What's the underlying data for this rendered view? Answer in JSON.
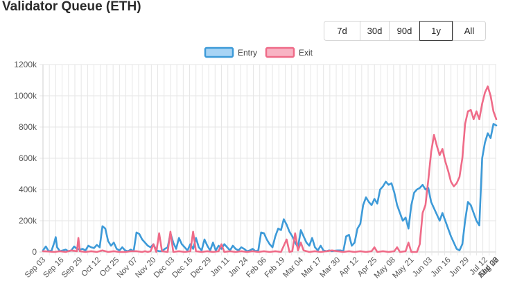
{
  "title": "Validator Queue (ETH)",
  "range_buttons": [
    {
      "label": "7d"
    },
    {
      "label": "30d"
    },
    {
      "label": "90d"
    },
    {
      "label": "1y",
      "active": true
    },
    {
      "label": "All"
    }
  ],
  "colors": {
    "entry": "#3d9ad8",
    "entry_fill": "#a8d4f5",
    "exit": "#ef6b88",
    "exit_fill": "#f8b4c4",
    "grid": "#e6e6e6"
  },
  "chart_data": {
    "type": "line",
    "ylim": [
      0,
      1200000
    ],
    "y_ticks": [
      "0",
      "200k",
      "400k",
      "600k",
      "800k",
      "1000k",
      "1200k"
    ],
    "x_ticks": [
      "Sep 03",
      "Sep 16",
      "Sep 29",
      "Oct 12",
      "Oct 25",
      "Nov 07",
      "Nov 20",
      "Dec 03",
      "Dec 16",
      "Dec 29",
      "Jan 11",
      "Jan 24",
      "Feb 06",
      "Feb 19",
      "Mar 04",
      "Mar 17",
      "Mar 30",
      "Apr 12",
      "Apr 25",
      "May 08",
      "May 21",
      "Jun 03",
      "Jun 16",
      "Jun 29",
      "Jul 12",
      "Jul 25",
      "Aug 07",
      "Aug 20",
      "Sep 02"
    ],
    "legend_position": "top",
    "grid": true,
    "series": [
      {
        "name": "Entry",
        "points": [
          [
            0,
            10000
          ],
          [
            2,
            35000
          ],
          [
            4,
            5000
          ],
          [
            6,
            8000
          ],
          [
            8,
            60000
          ],
          [
            9,
            95000
          ],
          [
            10,
            30000
          ],
          [
            12,
            5000
          ],
          [
            14,
            10000
          ],
          [
            16,
            15000
          ],
          [
            18,
            5000
          ],
          [
            20,
            10000
          ],
          [
            22,
            35000
          ],
          [
            24,
            20000
          ],
          [
            26,
            15000
          ],
          [
            28,
            20000
          ],
          [
            30,
            10000
          ],
          [
            32,
            40000
          ],
          [
            34,
            30000
          ],
          [
            36,
            25000
          ],
          [
            38,
            45000
          ],
          [
            40,
            30000
          ],
          [
            42,
            165000
          ],
          [
            44,
            150000
          ],
          [
            46,
            70000
          ],
          [
            48,
            40000
          ],
          [
            50,
            60000
          ],
          [
            52,
            20000
          ],
          [
            54,
            10000
          ],
          [
            56,
            30000
          ],
          [
            58,
            10000
          ],
          [
            60,
            5000
          ],
          [
            62,
            15000
          ],
          [
            64,
            5000
          ],
          [
            66,
            125000
          ],
          [
            68,
            115000
          ],
          [
            70,
            80000
          ],
          [
            72,
            60000
          ],
          [
            74,
            40000
          ],
          [
            76,
            30000
          ],
          [
            78,
            50000
          ],
          [
            80,
            10000
          ],
          [
            82,
            5000
          ],
          [
            84,
            5000
          ],
          [
            86,
            20000
          ],
          [
            88,
            30000
          ],
          [
            90,
            120000
          ],
          [
            92,
            60000
          ],
          [
            94,
            20000
          ],
          [
            96,
            90000
          ],
          [
            98,
            50000
          ],
          [
            100,
            30000
          ],
          [
            102,
            10000
          ],
          [
            104,
            50000
          ],
          [
            106,
            20000
          ],
          [
            108,
            90000
          ],
          [
            110,
            30000
          ],
          [
            112,
            10000
          ],
          [
            114,
            80000
          ],
          [
            116,
            40000
          ],
          [
            118,
            10000
          ],
          [
            120,
            60000
          ],
          [
            122,
            10000
          ],
          [
            124,
            40000
          ],
          [
            126,
            20000
          ],
          [
            128,
            50000
          ],
          [
            130,
            30000
          ],
          [
            132,
            10000
          ],
          [
            134,
            40000
          ],
          [
            136,
            20000
          ],
          [
            138,
            10000
          ],
          [
            140,
            30000
          ],
          [
            142,
            20000
          ],
          [
            144,
            5000
          ],
          [
            146,
            10000
          ],
          [
            148,
            20000
          ],
          [
            150,
            5000
          ],
          [
            152,
            10000
          ],
          [
            154,
            125000
          ],
          [
            156,
            120000
          ],
          [
            158,
            80000
          ],
          [
            160,
            50000
          ],
          [
            162,
            30000
          ],
          [
            164,
            100000
          ],
          [
            166,
            150000
          ],
          [
            168,
            140000
          ],
          [
            170,
            210000
          ],
          [
            172,
            175000
          ],
          [
            174,
            130000
          ],
          [
            176,
            100000
          ],
          [
            178,
            60000
          ],
          [
            180,
            30000
          ],
          [
            182,
            140000
          ],
          [
            184,
            100000
          ],
          [
            186,
            60000
          ],
          [
            188,
            40000
          ],
          [
            190,
            90000
          ],
          [
            192,
            30000
          ],
          [
            194,
            10000
          ],
          [
            196,
            40000
          ],
          [
            198,
            10000
          ],
          [
            200,
            5000
          ],
          [
            202,
            10000
          ],
          [
            204,
            5000
          ],
          [
            206,
            8000
          ],
          [
            208,
            10000
          ],
          [
            210,
            10000
          ],
          [
            212,
            5000
          ],
          [
            214,
            100000
          ],
          [
            216,
            110000
          ],
          [
            218,
            40000
          ],
          [
            220,
            60000
          ],
          [
            222,
            150000
          ],
          [
            224,
            180000
          ],
          [
            226,
            300000
          ],
          [
            228,
            350000
          ],
          [
            230,
            320000
          ],
          [
            232,
            300000
          ],
          [
            234,
            340000
          ],
          [
            236,
            310000
          ],
          [
            238,
            400000
          ],
          [
            240,
            420000
          ],
          [
            242,
            450000
          ],
          [
            244,
            430000
          ],
          [
            246,
            440000
          ],
          [
            248,
            380000
          ],
          [
            250,
            300000
          ],
          [
            252,
            250000
          ],
          [
            254,
            200000
          ],
          [
            256,
            220000
          ],
          [
            258,
            150000
          ],
          [
            260,
            300000
          ],
          [
            262,
            380000
          ],
          [
            264,
            400000
          ],
          [
            266,
            410000
          ],
          [
            268,
            430000
          ],
          [
            270,
            400000
          ],
          [
            272,
            410000
          ],
          [
            274,
            320000
          ],
          [
            276,
            280000
          ],
          [
            278,
            240000
          ],
          [
            280,
            200000
          ],
          [
            282,
            250000
          ],
          [
            284,
            200000
          ],
          [
            286,
            150000
          ],
          [
            288,
            100000
          ],
          [
            290,
            60000
          ],
          [
            292,
            20000
          ],
          [
            294,
            10000
          ],
          [
            296,
            50000
          ],
          [
            298,
            200000
          ],
          [
            300,
            320000
          ],
          [
            302,
            300000
          ],
          [
            304,
            250000
          ],
          [
            306,
            200000
          ],
          [
            308,
            170000
          ],
          [
            310,
            600000
          ],
          [
            312,
            700000
          ],
          [
            314,
            760000
          ],
          [
            316,
            730000
          ],
          [
            318,
            820000
          ],
          [
            320,
            810000
          ]
        ]
      },
      {
        "name": "Exit",
        "points": [
          [
            0,
            5000
          ],
          [
            4,
            3000
          ],
          [
            8,
            0
          ],
          [
            12,
            5000
          ],
          [
            16,
            0
          ],
          [
            20,
            10000
          ],
          [
            24,
            5000
          ],
          [
            25,
            90000
          ],
          [
            26,
            5000
          ],
          [
            30,
            0
          ],
          [
            34,
            5000
          ],
          [
            38,
            0
          ],
          [
            42,
            10000
          ],
          [
            46,
            0
          ],
          [
            50,
            5000
          ],
          [
            54,
            0
          ],
          [
            58,
            0
          ],
          [
            62,
            5000
          ],
          [
            66,
            5000
          ],
          [
            70,
            0
          ],
          [
            72,
            5000
          ],
          [
            74,
            0
          ],
          [
            76,
            5000
          ],
          [
            78,
            50000
          ],
          [
            80,
            0
          ],
          [
            82,
            120000
          ],
          [
            84,
            5000
          ],
          [
            88,
            0
          ],
          [
            90,
            130000
          ],
          [
            92,
            0
          ],
          [
            96,
            5000
          ],
          [
            100,
            0
          ],
          [
            104,
            5000
          ],
          [
            106,
            130000
          ],
          [
            108,
            5000
          ],
          [
            112,
            0
          ],
          [
            116,
            5000
          ],
          [
            120,
            0
          ],
          [
            124,
            5000
          ],
          [
            126,
            50000
          ],
          [
            128,
            0
          ],
          [
            132,
            5000
          ],
          [
            136,
            0
          ],
          [
            140,
            5000
          ],
          [
            144,
            0
          ],
          [
            148,
            5000
          ],
          [
            152,
            0
          ],
          [
            156,
            5000
          ],
          [
            160,
            0
          ],
          [
            164,
            5000
          ],
          [
            168,
            0
          ],
          [
            172,
            80000
          ],
          [
            174,
            0
          ],
          [
            176,
            5000
          ],
          [
            178,
            120000
          ],
          [
            180,
            10000
          ],
          [
            182,
            60000
          ],
          [
            184,
            10000
          ],
          [
            188,
            0
          ],
          [
            192,
            5000
          ],
          [
            196,
            0
          ],
          [
            200,
            5000
          ],
          [
            204,
            10000
          ],
          [
            208,
            5000
          ],
          [
            212,
            0
          ],
          [
            216,
            5000
          ],
          [
            220,
            0
          ],
          [
            224,
            5000
          ],
          [
            228,
            0
          ],
          [
            232,
            5000
          ],
          [
            234,
            30000
          ],
          [
            236,
            0
          ],
          [
            240,
            5000
          ],
          [
            244,
            0
          ],
          [
            248,
            5000
          ],
          [
            250,
            30000
          ],
          [
            252,
            0
          ],
          [
            256,
            5000
          ],
          [
            258,
            60000
          ],
          [
            260,
            0
          ],
          [
            264,
            0
          ],
          [
            266,
            50000
          ],
          [
            268,
            250000
          ],
          [
            270,
            300000
          ],
          [
            272,
            460000
          ],
          [
            274,
            640000
          ],
          [
            276,
            750000
          ],
          [
            278,
            680000
          ],
          [
            280,
            620000
          ],
          [
            282,
            660000
          ],
          [
            284,
            580000
          ],
          [
            286,
            520000
          ],
          [
            288,
            450000
          ],
          [
            290,
            420000
          ],
          [
            292,
            440000
          ],
          [
            294,
            480000
          ],
          [
            296,
            600000
          ],
          [
            298,
            820000
          ],
          [
            300,
            900000
          ],
          [
            302,
            910000
          ],
          [
            304,
            850000
          ],
          [
            306,
            900000
          ],
          [
            308,
            850000
          ],
          [
            310,
            950000
          ],
          [
            312,
            1020000
          ],
          [
            314,
            1060000
          ],
          [
            316,
            1000000
          ],
          [
            318,
            900000
          ],
          [
            320,
            850000
          ]
        ]
      }
    ]
  }
}
